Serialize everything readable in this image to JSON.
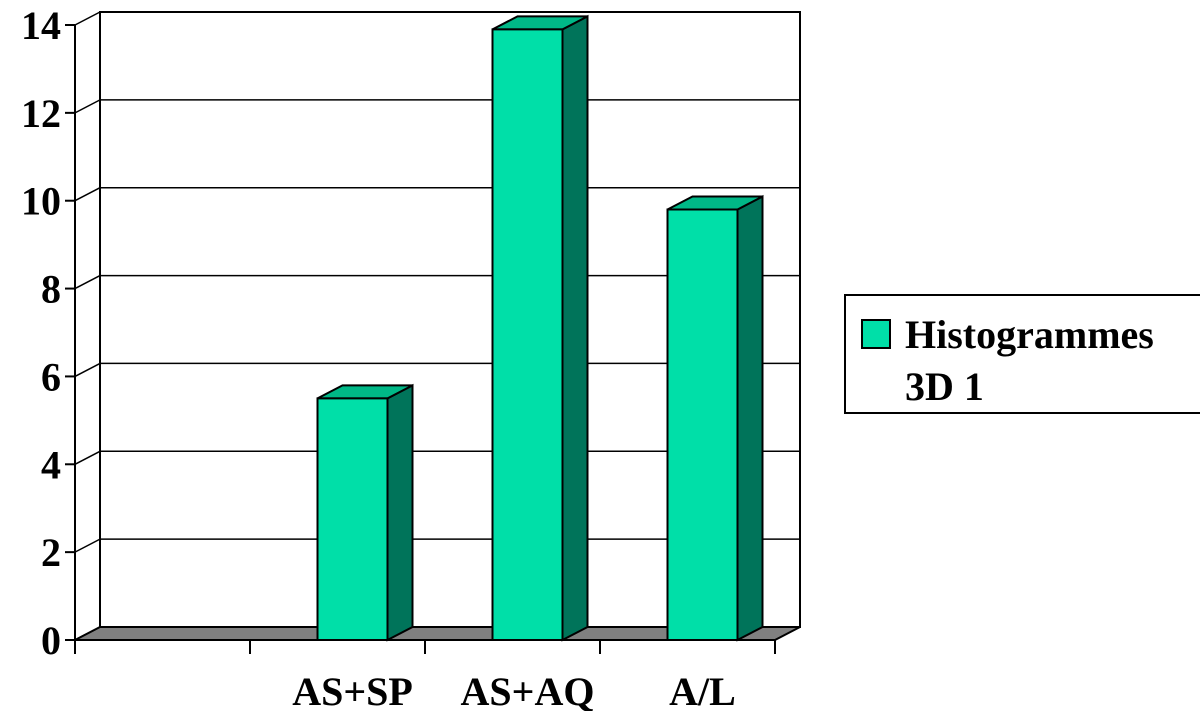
{
  "chart_data": {
    "type": "bar",
    "categories": [
      "",
      "AS+SP",
      "AS+AQ",
      "A/L"
    ],
    "series": [
      {
        "name": "Histogrammes 3D 1",
        "values": [
          0,
          5.5,
          13.9,
          9.8
        ]
      }
    ],
    "ylim": [
      0,
      14
    ],
    "yticks": [
      "0",
      "2",
      "4",
      "6",
      "8",
      "10",
      "12",
      "14"
    ],
    "grid": true,
    "legend": "right",
    "colors": {
      "bar_front": "#00dfa8",
      "bar_top": "#00b887",
      "bar_side": "#00745a",
      "floor": "#808080"
    }
  },
  "legend": {
    "line1": "Histogrammes",
    "line2": "3D 1"
  }
}
